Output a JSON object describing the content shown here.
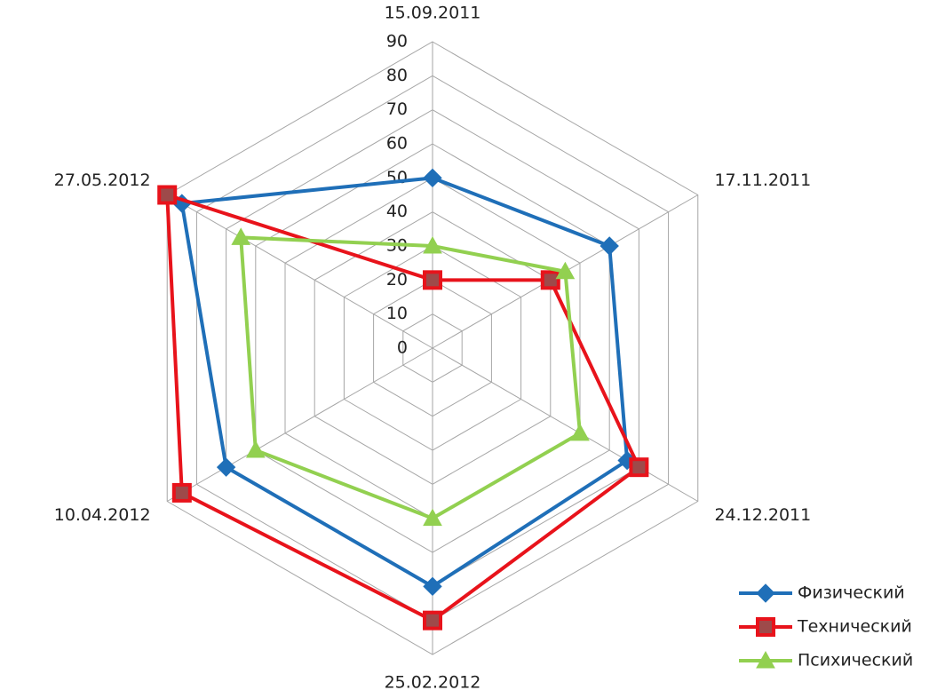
{
  "chart_data": {
    "type": "radar",
    "categories": [
      "15.09.2011",
      "17.11.2011",
      "24.12.2011",
      "25.02.2012",
      "10.04.2012",
      "27.05.2012"
    ],
    "series": [
      {
        "name": "Физический",
        "color": "#1f6fb8",
        "values": [
          50,
          60,
          66,
          70,
          70,
          85
        ]
      },
      {
        "name": "Технический",
        "color": "#e8131b",
        "values": [
          20,
          40,
          70,
          80,
          85,
          90
        ]
      },
      {
        "name": "Психический",
        "color": "#92d050",
        "values": [
          30,
          45,
          50,
          50,
          60,
          65
        ]
      }
    ],
    "ylim": [
      0,
      90
    ],
    "yticks": [
      0,
      10,
      20,
      30,
      40,
      50,
      60,
      70,
      80,
      90
    ],
    "grid": true,
    "legend": "bottom-right"
  }
}
